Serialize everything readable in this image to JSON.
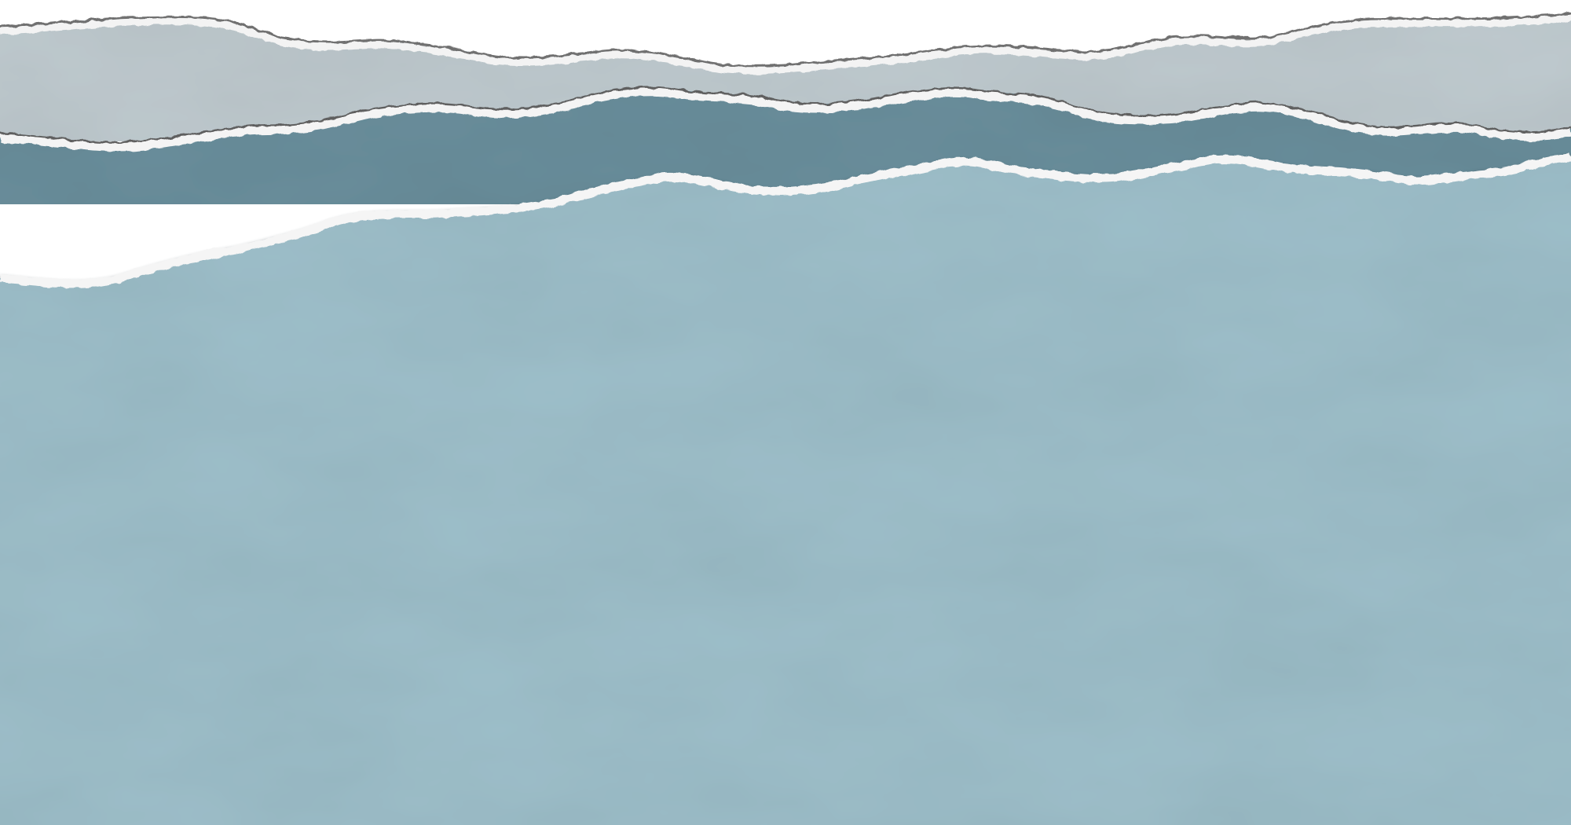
{
  "scene": {
    "description_free": true,
    "layers": [
      {
        "id": "top-gray-strip",
        "color": "#bfcacf"
      },
      {
        "id": "middle-slate-strip",
        "color": "#6b8f9c"
      },
      {
        "id": "bottom-blue-sheet",
        "color": "#9ebfca"
      }
    ],
    "edge_color": "#f5f5f5",
    "edge_shadow_color": "#5a5a5a",
    "background_color": "#ffffff"
  }
}
